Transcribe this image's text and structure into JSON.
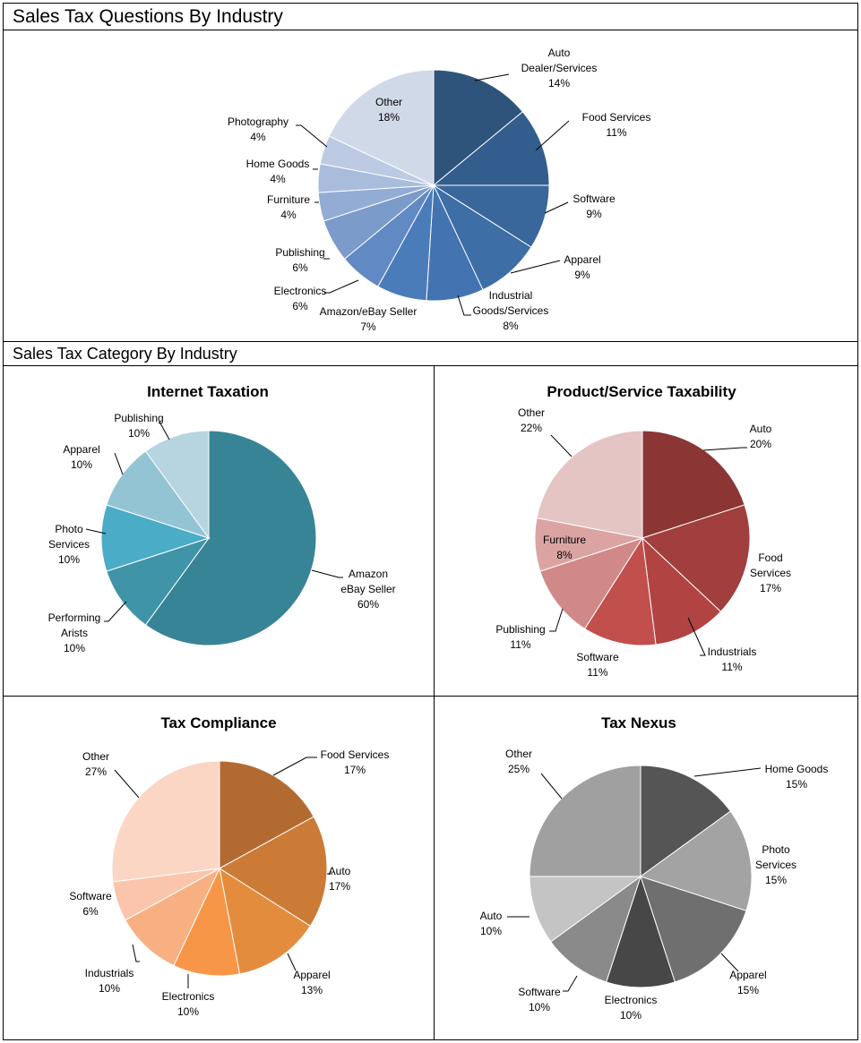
{
  "headers": {
    "main": "Sales Tax Questions By Industry",
    "category": "Sales Tax Category By Industry"
  },
  "chart_data": [
    {
      "type": "pie",
      "title": "",
      "slices": [
        {
          "label": [
            "Auto",
            "Dealer/Services"
          ],
          "value": 14,
          "pct": "14%",
          "color": "#2f547c"
        },
        {
          "label": [
            "Food Services"
          ],
          "value": 11,
          "pct": "11%",
          "color": "#335d8d"
        },
        {
          "label": [
            "Software"
          ],
          "value": 9,
          "pct": "9%",
          "color": "#39679c"
        },
        {
          "label": [
            "Apparel"
          ],
          "value": 9,
          "pct": "9%",
          "color": "#3d6ea6"
        },
        {
          "label": [
            "Industrial",
            "Goods/Services"
          ],
          "value": 8,
          "pct": "8%",
          "color": "#4373b0"
        },
        {
          "label": [
            "Amazon/eBay Seller"
          ],
          "value": 7,
          "pct": "7%",
          "color": "#4a7cba"
        },
        {
          "label": [
            "Electronics"
          ],
          "value": 6,
          "pct": "6%",
          "color": "#6189c3"
        },
        {
          "label": [
            "Publishing"
          ],
          "value": 6,
          "pct": "6%",
          "color": "#7b9bcb"
        },
        {
          "label": [
            "Furniture"
          ],
          "value": 4,
          "pct": "4%",
          "color": "#92acd4"
        },
        {
          "label": [
            "Home Goods"
          ],
          "value": 4,
          "pct": "4%",
          "color": "#a8bcdc"
        },
        {
          "label": [
            "Photography"
          ],
          "value": 4,
          "pct": "4%",
          "color": "#bccbe3"
        },
        {
          "label": [
            "Other"
          ],
          "value": 18,
          "pct": "18%",
          "color": "#d0d9e8"
        }
      ]
    },
    {
      "type": "pie",
      "title": "Internet Taxation",
      "slices": [
        {
          "label": [
            "Amazon",
            "eBay Seller"
          ],
          "value": 60,
          "pct": "60%",
          "color": "#378496"
        },
        {
          "label": [
            "Performing",
            "Arists"
          ],
          "value": 10,
          "pct": "10%",
          "color": "#3f94a8"
        },
        {
          "label": [
            "Photo",
            "Services"
          ],
          "value": 10,
          "pct": "10%",
          "color": "#4aacc6"
        },
        {
          "label": [
            "Apparel"
          ],
          "value": 10,
          "pct": "10%",
          "color": "#93c4d4"
        },
        {
          "label": [
            "Publishing"
          ],
          "value": 10,
          "pct": "10%",
          "color": "#b7d5e1"
        }
      ]
    },
    {
      "type": "pie",
      "title": "Product/Service Taxability",
      "slices": [
        {
          "label": [
            "Auto"
          ],
          "value": 20,
          "pct": "20%",
          "color": "#8b3635"
        },
        {
          "label": [
            "Food",
            "Services"
          ],
          "value": 17,
          "pct": "17%",
          "color": "#a03f3d"
        },
        {
          "label": [
            "Industrials"
          ],
          "value": 11,
          "pct": "11%",
          "color": "#b14442"
        },
        {
          "label": [
            "Software"
          ],
          "value": 11,
          "pct": "11%",
          "color": "#c14f4c"
        },
        {
          "label": [
            "Publishing"
          ],
          "value": 11,
          "pct": "11%",
          "color": "#d08987"
        },
        {
          "label": [
            "Furniture"
          ],
          "value": 8,
          "pct": "8%",
          "color": "#dba4a3"
        },
        {
          "label": [
            "Other"
          ],
          "value": 22,
          "pct": "22%",
          "color": "#e5c4c4"
        }
      ]
    },
    {
      "type": "pie",
      "title": "Tax Compliance",
      "slices": [
        {
          "label": [
            "Food  Services"
          ],
          "value": 17,
          "pct": "17%",
          "color": "#b36a30"
        },
        {
          "label": [
            "Auto"
          ],
          "value": 17,
          "pct": "17%",
          "color": "#cc7b36"
        },
        {
          "label": [
            "Apparel"
          ],
          "value": 13,
          "pct": "13%",
          "color": "#e48c3e"
        },
        {
          "label": [
            "Electronics"
          ],
          "value": 10,
          "pct": "10%",
          "color": "#f79646"
        },
        {
          "label": [
            "Industrials"
          ],
          "value": 10,
          "pct": "10%",
          "color": "#f8b083"
        },
        {
          "label": [
            "Software"
          ],
          "value": 6,
          "pct": "6%",
          "color": "#fac5ab"
        },
        {
          "label": [
            "Other"
          ],
          "value": 27,
          "pct": "27%",
          "color": "#fbd6c4"
        }
      ]
    },
    {
      "type": "pie",
      "title": "Tax Nexus",
      "slices": [
        {
          "label": [
            "Home Goods"
          ],
          "value": 15,
          "pct": "15%",
          "color": "#555555"
        },
        {
          "label": [
            "Photo",
            "Services"
          ],
          "value": 15,
          "pct": "15%",
          "color": "#a3a3a3"
        },
        {
          "label": [
            "Apparel"
          ],
          "value": 15,
          "pct": "15%",
          "color": "#6f6f6f"
        },
        {
          "label": [
            "Electronics"
          ],
          "value": 10,
          "pct": "10%",
          "color": "#474747"
        },
        {
          "label": [
            "Software"
          ],
          "value": 10,
          "pct": "10%",
          "color": "#8a8a8a"
        },
        {
          "label": [
            "Auto"
          ],
          "value": 10,
          "pct": "10%",
          "color": "#c4c4c4"
        },
        {
          "label": [
            "Other"
          ],
          "value": 25,
          "pct": "25%",
          "color": "#a0a0a0"
        }
      ]
    }
  ]
}
